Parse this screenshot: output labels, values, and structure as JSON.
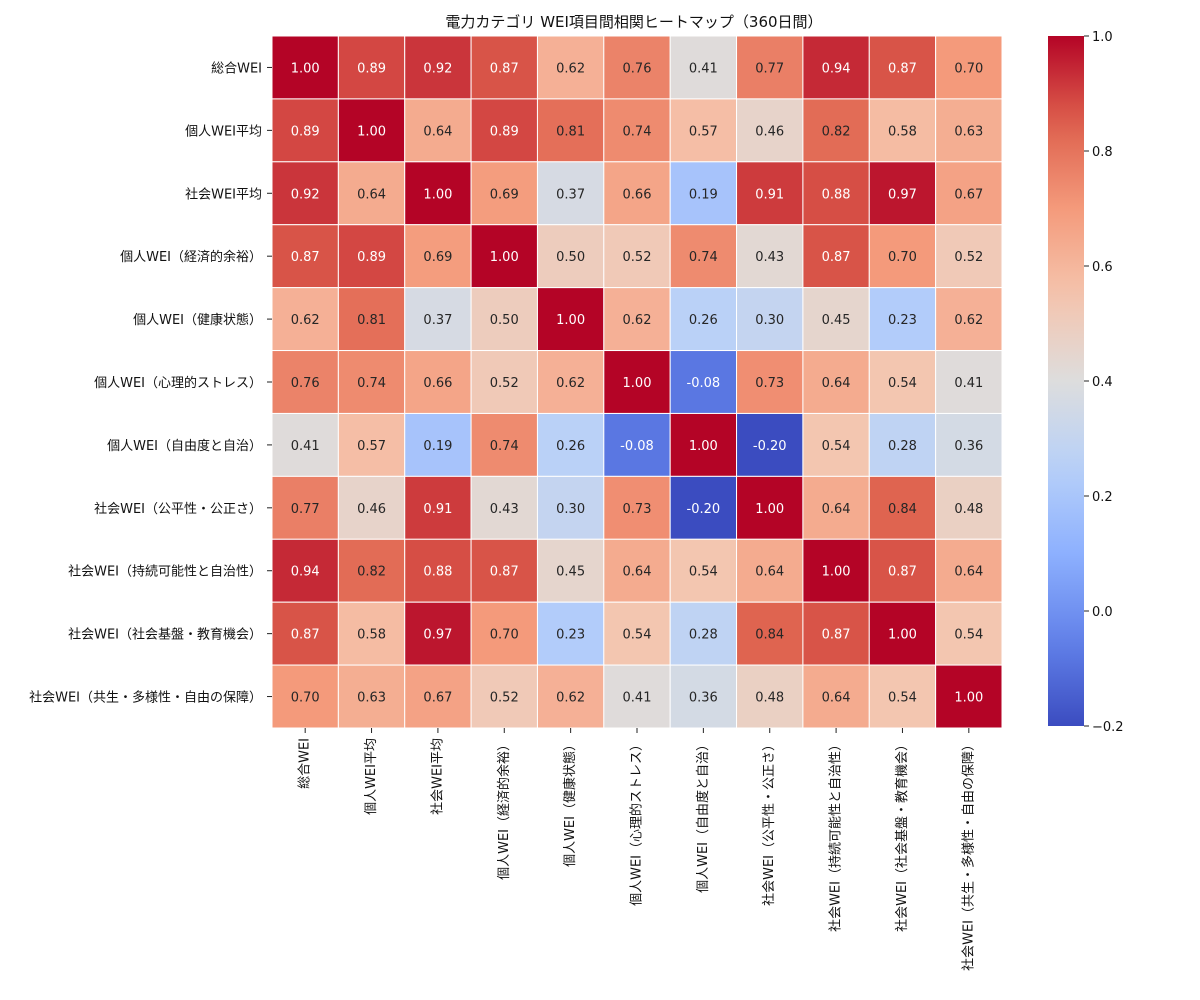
{
  "chart_data": {
    "type": "heatmap",
    "title": "電力カテゴリ WEI項目間相関ヒートマップ（360日間）",
    "labels": [
      "総合WEI",
      "個人WEI平均",
      "社会WEI平均",
      "個人WEI（経済的余裕）",
      "個人WEI（健康状態）",
      "個人WEI（心理的ストレス）",
      "個人WEI（自由度と自治）",
      "社会WEI（公平性・公正さ）",
      "社会WEI（持続可能性と自治性）",
      "社会WEI（社会基盤・教育機会）",
      "社会WEI（共生・多様性・自由の保障）"
    ],
    "matrix": [
      [
        1.0,
        0.89,
        0.92,
        0.87,
        0.62,
        0.76,
        0.41,
        0.77,
        0.94,
        0.87,
        0.7
      ],
      [
        0.89,
        1.0,
        0.64,
        0.89,
        0.81,
        0.74,
        0.57,
        0.46,
        0.82,
        0.58,
        0.63
      ],
      [
        0.92,
        0.64,
        1.0,
        0.69,
        0.37,
        0.66,
        0.19,
        0.91,
        0.88,
        0.97,
        0.67
      ],
      [
        0.87,
        0.89,
        0.69,
        1.0,
        0.5,
        0.52,
        0.74,
        0.43,
        0.87,
        0.7,
        0.52
      ],
      [
        0.62,
        0.81,
        0.37,
        0.5,
        1.0,
        0.62,
        0.26,
        0.3,
        0.45,
        0.23,
        0.62
      ],
      [
        0.76,
        0.74,
        0.66,
        0.52,
        0.62,
        1.0,
        -0.08,
        0.73,
        0.64,
        0.54,
        0.41
      ],
      [
        0.41,
        0.57,
        0.19,
        0.74,
        0.26,
        -0.08,
        1.0,
        -0.2,
        0.54,
        0.28,
        0.36
      ],
      [
        0.77,
        0.46,
        0.91,
        0.43,
        0.3,
        0.73,
        -0.2,
        1.0,
        0.64,
        0.84,
        0.48
      ],
      [
        0.94,
        0.82,
        0.88,
        0.87,
        0.45,
        0.64,
        0.54,
        0.64,
        1.0,
        0.87,
        0.64
      ],
      [
        0.87,
        0.58,
        0.97,
        0.7,
        0.23,
        0.54,
        0.28,
        0.84,
        0.87,
        1.0,
        0.54
      ],
      [
        0.7,
        0.63,
        0.67,
        0.52,
        0.62,
        0.41,
        0.36,
        0.48,
        0.64,
        0.54,
        1.0
      ]
    ],
    "colorscale": "coolwarm",
    "vmin": -0.2,
    "vmax": 1.0,
    "colorbar_ticks": [
      "1.0",
      "0.8",
      "0.6",
      "0.4",
      "0.2",
      "0.0",
      "−0.2"
    ],
    "colorbar_tick_values": [
      1.0,
      0.8,
      0.6,
      0.4,
      0.2,
      0.0,
      -0.2
    ]
  }
}
